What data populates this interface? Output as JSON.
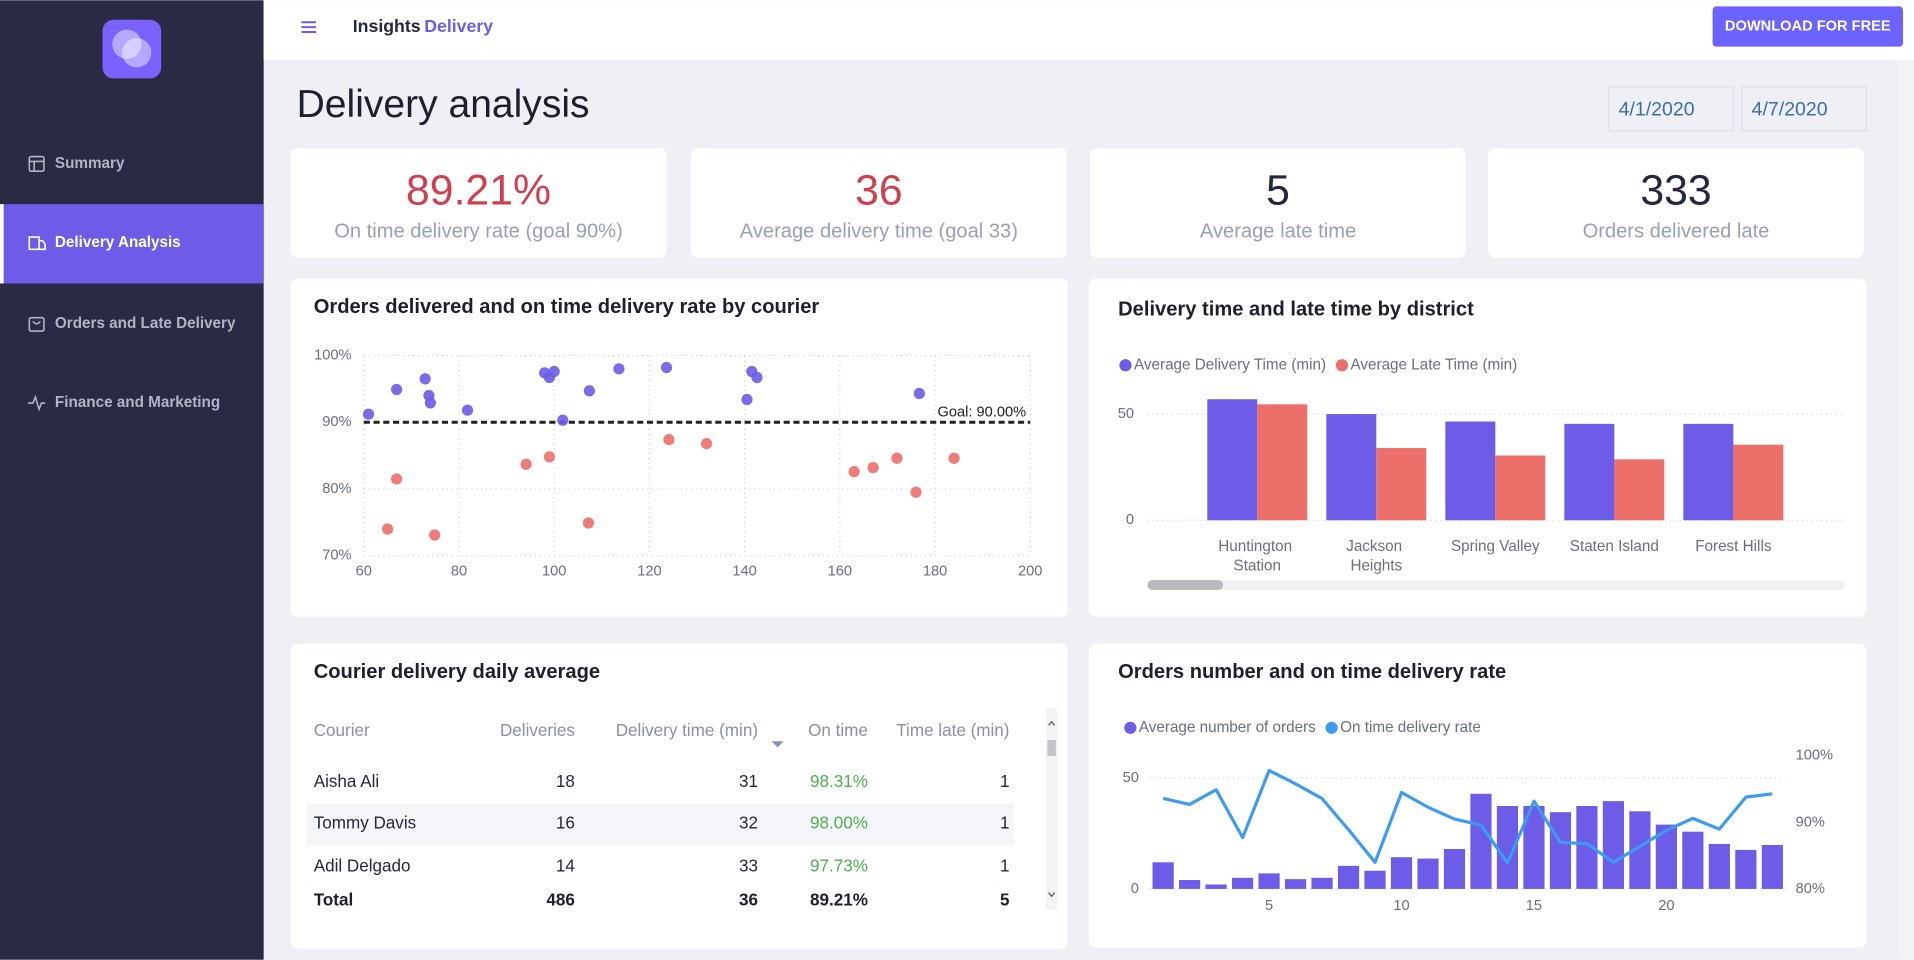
{
  "header": {
    "brand": "Insights",
    "brand_accent": "Delivery",
    "button": "DOWNLOAD FOR FREE"
  },
  "nav": [
    "Summary",
    "Delivery Analysis",
    "Orders and Late Delivery",
    "Finance and Marketing"
  ],
  "page": {
    "title": "Delivery analysis",
    "date_from": "4/1/2020",
    "date_to": "4/7/2020"
  },
  "kpis": [
    {
      "value": "89.21%",
      "label": "On time delivery rate (goal 90%)",
      "color": "#d13f4f"
    },
    {
      "value": "36",
      "label": "Average delivery time (goal 33)",
      "color": "#d13f4f"
    },
    {
      "value": "5",
      "label": "Average late time",
      "color": "#25273f"
    },
    {
      "value": "333",
      "label": "Orders delivered late",
      "color": "#25273f"
    }
  ],
  "table": {
    "title": "Courier delivery daily average",
    "columns": [
      "Courier",
      "Deliveries",
      "Delivery time (min)",
      "On time",
      "Time late (min)"
    ],
    "rows": [
      [
        "Aisha Ali",
        "18",
        "31",
        "98.31%",
        "1"
      ],
      [
        "Tommy Davis",
        "16",
        "32",
        "98.00%",
        "1"
      ],
      [
        "Adil Delgado",
        "14",
        "33",
        "97.73%",
        "1"
      ]
    ],
    "total": [
      "Total",
      "486",
      "36",
      "89.21%",
      "5"
    ]
  },
  "chart_data": [
    {
      "type": "scatter",
      "title": "Orders delivered and on time delivery rate by courier",
      "series": [
        {
          "color": "#6c5ce7",
          "x": [
            61,
            66.9,
            72.9,
            73.7,
            74,
            81.8,
            98,
            99,
            100,
            101.8,
            107.4,
            113.6,
            123.6,
            140.5,
            141.5,
            142.6,
            176.7
          ],
          "values": [
            91.2,
            94.9,
            96.5,
            94,
            92.9,
            91.8,
            97.4,
            96.7,
            97.6,
            90.3,
            94.7,
            98,
            98.2,
            93.4,
            97.6,
            96.7,
            94.3
          ]
        },
        {
          "color": "#ec6f6a",
          "x": [
            65,
            66.9,
            74.9,
            94.1,
            99,
            107.2,
            124.1,
            132,
            163,
            167,
            172,
            176,
            184
          ],
          "values": [
            74,
            81.5,
            73.1,
            83.7,
            84.8,
            74.9,
            87.4,
            86.8,
            82.6,
            83.2,
            84.6,
            79.5,
            84.6
          ]
        }
      ],
      "goal": {
        "value": 90,
        "label": "Goal: 90.00%"
      },
      "xlim": [
        60,
        200
      ],
      "xticks": [
        60,
        80,
        100,
        120,
        140,
        160,
        180,
        200
      ],
      "ylim": [
        70,
        100
      ],
      "yticks": [
        {
          "value": 70,
          "label": "70%"
        },
        {
          "value": 80,
          "label": "80%"
        },
        {
          "value": 90,
          "label": "90%"
        },
        {
          "value": 100,
          "label": "100%"
        }
      ],
      "grid": true
    },
    {
      "type": "bar",
      "title": "Delivery time and late time by district",
      "categories": [
        "Huntington Station",
        "Jackson Heights",
        "Spring Valley",
        "Staten Island",
        "Forest Hills"
      ],
      "series": [
        {
          "name": "Average Delivery Time (min)",
          "color": "#6c5ce7",
          "values": [
            57,
            50,
            46.5,
            45.4,
            45.4
          ]
        },
        {
          "name": "Average Late Time (min)",
          "color": "#ec6f6a",
          "values": [
            54.6,
            34,
            30.5,
            28.7,
            35.6
          ]
        }
      ],
      "ylim": [
        0,
        60
      ],
      "yticks": [
        0,
        50
      ],
      "legend": "top-left",
      "grid": true
    },
    {
      "type": "combo",
      "title": "Orders number and on time delivery rate",
      "x": [
        1,
        2,
        3,
        4,
        5,
        6,
        7,
        8,
        9,
        10,
        11,
        12,
        13,
        14,
        15,
        16,
        17,
        18,
        19,
        20,
        21,
        22,
        23,
        24
      ],
      "xlim": [
        0.5,
        24.5
      ],
      "xticks": [
        5,
        10,
        15,
        20
      ],
      "series": [
        {
          "name": "Average number of orders",
          "type": "bar",
          "color": "#6c5ce7",
          "values": [
            12,
            4,
            2,
            5,
            7,
            4.4,
            5,
            10.4,
            8.2,
            14.3,
            13.7,
            18,
            42.9,
            37.4,
            37.4,
            34.6,
            37.4,
            39.6,
            35,
            29,
            25.8,
            20.3,
            17.6,
            19.8
          ]
        },
        {
          "name": "On time delivery rate",
          "type": "line",
          "color": "#3d9bf0",
          "axis": "y2",
          "values": [
            93.6,
            92.7,
            94.9,
            87.7,
            97.8,
            95.8,
            93.6,
            88.9,
            84,
            94.5,
            92.3,
            90.5,
            89.6,
            83.9,
            93.2,
            87,
            86.8,
            84,
            86.4,
            88.8,
            90.6,
            89,
            93.8,
            94.3
          ]
        }
      ],
      "ylim": [
        0,
        60
      ],
      "yticks": [
        0,
        50
      ],
      "y2lim": [
        80,
        100
      ],
      "y2ticks": [
        {
          "value": 80,
          "label": "80%"
        },
        {
          "value": 90,
          "label": "90%"
        },
        {
          "value": 100,
          "label": "100%"
        }
      ],
      "legend": "top-left",
      "grid": true
    }
  ]
}
